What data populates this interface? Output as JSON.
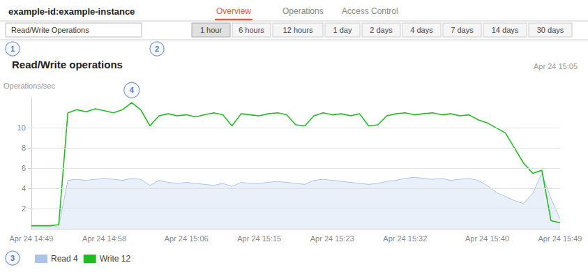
{
  "chart_data": {
    "type": "line",
    "title": "Read/Write operations",
    "subtitle": "Apr 24 15:05",
    "y_label": "Operations/sec",
    "categories": [
      "Apr 24 14:49",
      null,
      null,
      null,
      null,
      null,
      null,
      null,
      "Apr 24 14:58",
      null,
      null,
      null,
      null,
      null,
      null,
      null,
      null,
      "Apr 24 15:06",
      null,
      null,
      null,
      null,
      null,
      null,
      null,
      "Apr 24 15:15",
      null,
      null,
      null,
      null,
      null,
      null,
      null,
      "Apr 24 15:23",
      null,
      null,
      null,
      null,
      null,
      null,
      null,
      "Apr 24 15:32",
      null,
      null,
      null,
      null,
      null,
      null,
      null,
      null,
      "Apr 24 15:40",
      null,
      null,
      null,
      null,
      null,
      null,
      null,
      "Apr 24 15:49"
    ],
    "series": [
      {
        "name": "Read 4",
        "type": "area",
        "color": "#aac4e8",
        "values": [
          0.2,
          0.2,
          0.2,
          0.2,
          4.8,
          4.9,
          4.8,
          4.9,
          5.0,
          4.9,
          4.8,
          5.0,
          4.9,
          4.3,
          4.8,
          4.6,
          4.5,
          4.6,
          4.5,
          4.4,
          4.3,
          4.5,
          4.2,
          4.6,
          4.5,
          4.5,
          4.6,
          4.7,
          4.6,
          4.5,
          4.4,
          4.8,
          4.9,
          4.8,
          4.7,
          4.6,
          4.5,
          4.4,
          4.5,
          4.7,
          4.8,
          5.0,
          5.1,
          5.0,
          4.9,
          5.0,
          4.8,
          4.9,
          5.0,
          4.8,
          4.3,
          3.6,
          3.2,
          2.8,
          2.5,
          3.5,
          5.5,
          3.0,
          1.0
        ]
      },
      {
        "name": "Write 12",
        "type": "line",
        "color": "#22bb22",
        "values": [
          0.3,
          0.3,
          0.3,
          0.4,
          11.5,
          11.8,
          11.6,
          11.9,
          11.7,
          11.5,
          11.8,
          12.5,
          11.8,
          10.2,
          11.2,
          11.4,
          11.2,
          11.3,
          11.1,
          11.3,
          11.5,
          11.3,
          10.2,
          11.4,
          11.3,
          11.2,
          11.4,
          11.5,
          11.3,
          10.3,
          10.2,
          11.2,
          11.5,
          11.3,
          11.4,
          11.2,
          11.4,
          10.2,
          10.3,
          11.2,
          11.4,
          11.5,
          11.3,
          11.4,
          11.5,
          11.3,
          11.4,
          11.2,
          11.3,
          10.8,
          10.5,
          10.0,
          9.5,
          8.0,
          6.5,
          5.5,
          5.8,
          0.8,
          0.6
        ]
      }
    ],
    "ylim": [
      0,
      13
    ],
    "yticks": [
      2,
      4,
      6,
      8,
      10
    ],
    "grid": true,
    "legend": "bottom",
    "annotations": [
      "example-id:example-instance",
      "Overview",
      "Operations",
      "Access Control",
      "Read/Write Operations",
      "1 hour",
      "6 hours",
      "12 hours",
      "1 day",
      "2 days",
      "4 days",
      "7 days",
      "14 days",
      "30 days",
      "1",
      "2",
      "3",
      "4"
    ]
  }
}
